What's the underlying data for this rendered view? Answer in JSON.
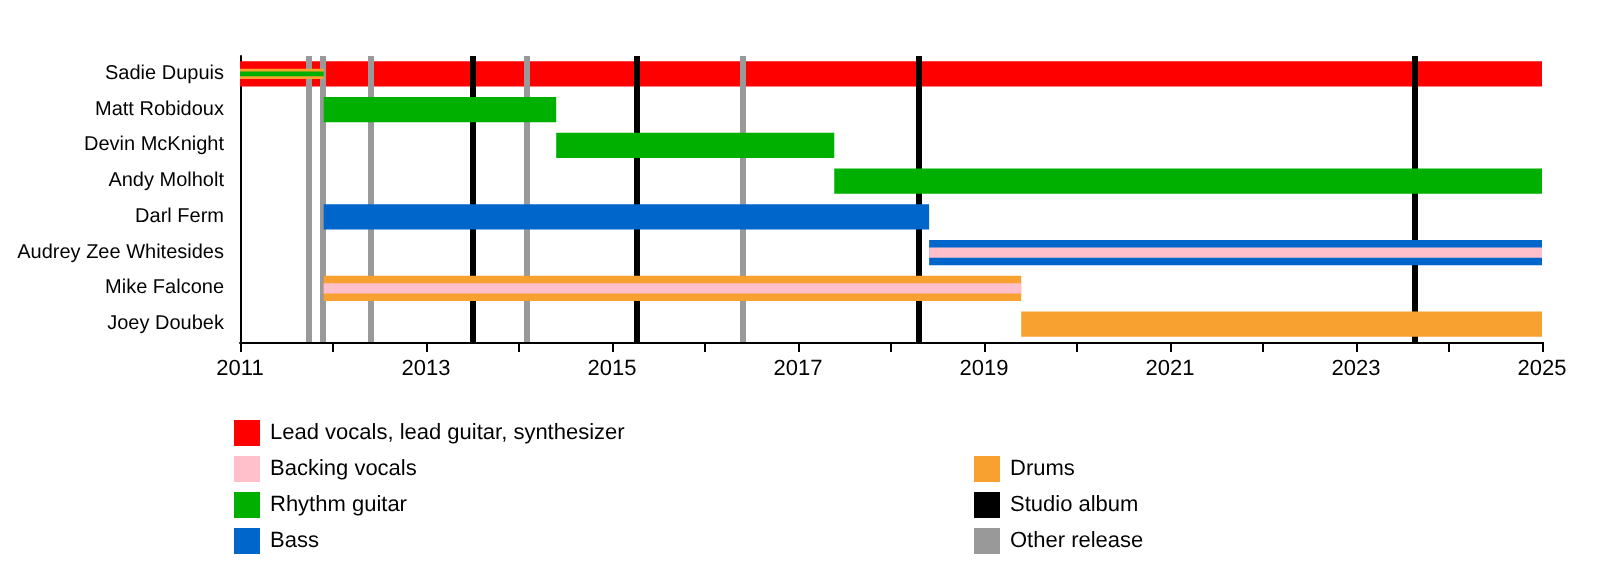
{
  "chart_data": {
    "type": "bar",
    "orientation": "horizontal",
    "categories": [
      "Sadie Dupuis",
      "Matt Robidoux",
      "Devin McKnight",
      "Andy Molholt",
      "Darl Ferm",
      "Audrey Zee Whitesides",
      "Mike Falcone",
      "Joey Doubek"
    ],
    "series": [
      {
        "name": "Lead vocals, lead guitar, synthesizer",
        "color": "#ff0000",
        "base": [
          2011,
          null,
          null,
          null,
          null,
          null,
          null,
          null
        ],
        "values": [
          14,
          null,
          null,
          null,
          null,
          null,
          null,
          null
        ]
      },
      {
        "name": "Backing vocals",
        "color": "#ffc0cb",
        "base": [
          null,
          null,
          null,
          null,
          null,
          2018.41,
          2011.9,
          null
        ],
        "values": [
          null,
          null,
          null,
          null,
          null,
          6.59,
          7.5,
          null
        ]
      },
      {
        "name": "Rhythm guitar",
        "color": "#00b000",
        "base": [
          2011,
          2011.9,
          2014.4,
          2017.39,
          null,
          null,
          null,
          null
        ],
        "values": [
          0.9,
          2.5,
          2.99,
          7.61,
          null,
          null,
          null,
          null
        ]
      },
      {
        "name": "Bass",
        "color": "#0066cc",
        "base": [
          null,
          null,
          null,
          null,
          2011.9,
          2018.41,
          null,
          null
        ],
        "values": [
          null,
          null,
          null,
          null,
          6.51,
          6.59,
          null,
          null
        ]
      },
      {
        "name": "Drums",
        "color": "#f8a030",
        "base": [
          2011,
          null,
          null,
          null,
          null,
          null,
          2011.9,
          2019.4
        ],
        "values": [
          0.9,
          null,
          null,
          null,
          null,
          null,
          7.5,
          5.6
        ]
      }
    ],
    "xlim": [
      2011,
      2025
    ],
    "xticks": [
      2011,
      {
        "value": 2012,
        "label": null
      },
      2013,
      {
        "value": 2014,
        "label": null
      },
      2015,
      {
        "value": 2016,
        "label": null
      },
      2017,
      {
        "value": 2018,
        "label": null
      },
      2019,
      {
        "value": 2020,
        "label": null
      },
      2021,
      {
        "value": 2022,
        "label": null
      },
      2023,
      {
        "value": 2024,
        "label": null
      },
      2025
    ],
    "ref_lines": [
      {
        "axis": "x",
        "value": 2013.49,
        "label": "Studio album",
        "color": "#000000"
      },
      {
        "axis": "x",
        "value": 2015.27,
        "color": "#000000"
      },
      {
        "axis": "x",
        "value": 2018.29,
        "color": "#000000"
      },
      {
        "axis": "x",
        "value": 2023.63,
        "color": "#000000"
      },
      {
        "axis": "x",
        "value": 2011.73,
        "label": "Other release",
        "color": "#999999"
      },
      {
        "axis": "x",
        "value": 2011.89,
        "color": "#999999"
      },
      {
        "axis": "x",
        "value": 2012.41,
        "color": "#999999"
      },
      {
        "axis": "x",
        "value": 2014.09,
        "color": "#999999"
      },
      {
        "axis": "x",
        "value": 2016.4,
        "color": "#999999"
      }
    ],
    "legend": "bottom",
    "grid": false
  }
}
